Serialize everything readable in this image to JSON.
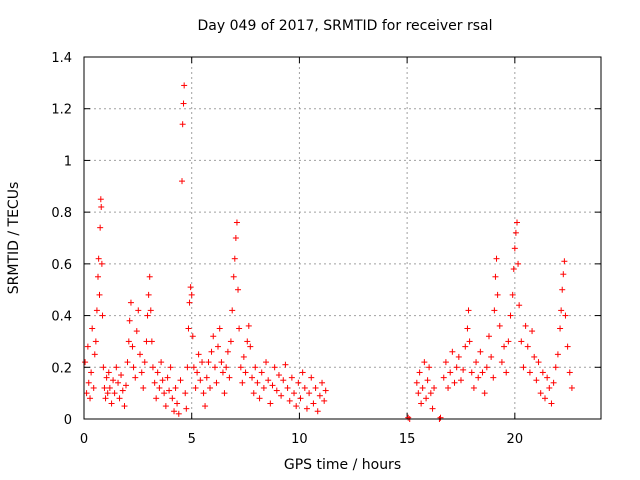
{
  "chart_data": {
    "type": "scatter",
    "title": "Day 049 of 2017, SRMTID for receiver rsal",
    "xlabel": "GPS time / hours",
    "ylabel": "SRMTID / TECUs",
    "xlim": [
      0,
      24
    ],
    "ylim": [
      0,
      1.4
    ],
    "x_ticks": [
      {
        "value": 0,
        "label": "0"
      },
      {
        "value": 5,
        "label": "5"
      },
      {
        "value": 10,
        "label": "10"
      },
      {
        "value": 15,
        "label": "15"
      },
      {
        "value": 20,
        "label": "20"
      }
    ],
    "y_ticks": [
      {
        "value": 0,
        "label": "0"
      },
      {
        "value": 0.2,
        "label": "0.2"
      },
      {
        "value": 0.4,
        "label": "0.4"
      },
      {
        "value": 0.6,
        "label": "0.6"
      },
      {
        "value": 0.8,
        "label": "0.8"
      },
      {
        "value": 1.0,
        "label": "1"
      },
      {
        "value": 1.2,
        "label": "1.2"
      },
      {
        "value": 1.4,
        "label": "1.4"
      }
    ],
    "grid": true,
    "marker": "+",
    "color": "#ff0000",
    "series": [
      {
        "name": "SRMTID",
        "points": [
          [
            0.05,
            0.22
          ],
          [
            0.12,
            0.1
          ],
          [
            0.18,
            0.28
          ],
          [
            0.22,
            0.14
          ],
          [
            0.28,
            0.08
          ],
          [
            0.33,
            0.18
          ],
          [
            0.38,
            0.35
          ],
          [
            0.45,
            0.12
          ],
          [
            0.5,
            0.25
          ],
          [
            0.55,
            0.3
          ],
          [
            0.6,
            0.42
          ],
          [
            0.65,
            0.55
          ],
          [
            0.68,
            0.62
          ],
          [
            0.72,
            0.48
          ],
          [
            0.75,
            0.74
          ],
          [
            0.78,
            0.85
          ],
          [
            0.8,
            0.82
          ],
          [
            0.83,
            0.6
          ],
          [
            0.86,
            0.4
          ],
          [
            0.9,
            0.2
          ],
          [
            0.95,
            0.12
          ],
          [
            1.0,
            0.08
          ],
          [
            1.05,
            0.16
          ],
          [
            1.1,
            0.1
          ],
          [
            1.15,
            0.18
          ],
          [
            1.2,
            0.12
          ],
          [
            1.28,
            0.06
          ],
          [
            1.35,
            0.15
          ],
          [
            1.42,
            0.1
          ],
          [
            1.5,
            0.2
          ],
          [
            1.58,
            0.14
          ],
          [
            1.65,
            0.08
          ],
          [
            1.72,
            0.17
          ],
          [
            1.8,
            0.11
          ],
          [
            1.88,
            0.05
          ],
          [
            1.95,
            0.13
          ],
          [
            2.02,
            0.22
          ],
          [
            2.08,
            0.3
          ],
          [
            2.12,
            0.38
          ],
          [
            2.18,
            0.45
          ],
          [
            2.25,
            0.28
          ],
          [
            2.3,
            0.2
          ],
          [
            2.38,
            0.16
          ],
          [
            2.45,
            0.34
          ],
          [
            2.52,
            0.42
          ],
          [
            2.6,
            0.25
          ],
          [
            2.68,
            0.18
          ],
          [
            2.75,
            0.12
          ],
          [
            2.82,
            0.22
          ],
          [
            2.9,
            0.3
          ],
          [
            2.95,
            0.4
          ],
          [
            3.0,
            0.48
          ],
          [
            3.05,
            0.55
          ],
          [
            3.1,
            0.42
          ],
          [
            3.15,
            0.3
          ],
          [
            3.2,
            0.2
          ],
          [
            3.28,
            0.14
          ],
          [
            3.35,
            0.08
          ],
          [
            3.42,
            0.18
          ],
          [
            3.5,
            0.12
          ],
          [
            3.58,
            0.22
          ],
          [
            3.65,
            0.15
          ],
          [
            3.72,
            0.1
          ],
          [
            3.8,
            0.05
          ],
          [
            3.88,
            0.16
          ],
          [
            3.95,
            0.11
          ],
          [
            4.02,
            0.2
          ],
          [
            4.1,
            0.08
          ],
          [
            4.18,
            0.03
          ],
          [
            4.25,
            0.12
          ],
          [
            4.32,
            0.06
          ],
          [
            4.4,
            0.02
          ],
          [
            4.48,
            0.15
          ],
          [
            4.55,
            0.92
          ],
          [
            4.58,
            1.14
          ],
          [
            4.62,
            1.22
          ],
          [
            4.65,
            1.29
          ],
          [
            4.7,
            0.1
          ],
          [
            4.75,
            0.04
          ],
          [
            4.8,
            0.2
          ],
          [
            4.85,
            0.35
          ],
          [
            4.9,
            0.45
          ],
          [
            4.95,
            0.51
          ],
          [
            5.0,
            0.48
          ],
          [
            5.05,
            0.32
          ],
          [
            5.1,
            0.2
          ],
          [
            5.18,
            0.12
          ],
          [
            5.25,
            0.18
          ],
          [
            5.32,
            0.25
          ],
          [
            5.4,
            0.15
          ],
          [
            5.48,
            0.22
          ],
          [
            5.55,
            0.1
          ],
          [
            5.62,
            0.05
          ],
          [
            5.7,
            0.16
          ],
          [
            5.78,
            0.22
          ],
          [
            5.85,
            0.12
          ],
          [
            5.92,
            0.26
          ],
          [
            6.0,
            0.32
          ],
          [
            6.08,
            0.2
          ],
          [
            6.15,
            0.14
          ],
          [
            6.22,
            0.28
          ],
          [
            6.3,
            0.35
          ],
          [
            6.38,
            0.22
          ],
          [
            6.45,
            0.18
          ],
          [
            6.52,
            0.1
          ],
          [
            6.6,
            0.2
          ],
          [
            6.68,
            0.26
          ],
          [
            6.75,
            0.16
          ],
          [
            6.82,
            0.3
          ],
          [
            6.88,
            0.42
          ],
          [
            6.95,
            0.55
          ],
          [
            7.0,
            0.62
          ],
          [
            7.05,
            0.7
          ],
          [
            7.1,
            0.76
          ],
          [
            7.15,
            0.5
          ],
          [
            7.2,
            0.35
          ],
          [
            7.28,
            0.2
          ],
          [
            7.35,
            0.14
          ],
          [
            7.42,
            0.24
          ],
          [
            7.5,
            0.18
          ],
          [
            7.58,
            0.3
          ],
          [
            7.65,
            0.36
          ],
          [
            7.72,
            0.28
          ],
          [
            7.8,
            0.16
          ],
          [
            7.88,
            0.1
          ],
          [
            7.95,
            0.2
          ],
          [
            8.05,
            0.14
          ],
          [
            8.15,
            0.08
          ],
          [
            8.25,
            0.18
          ],
          [
            8.35,
            0.12
          ],
          [
            8.45,
            0.22
          ],
          [
            8.55,
            0.15
          ],
          [
            8.65,
            0.06
          ],
          [
            8.75,
            0.13
          ],
          [
            8.85,
            0.2
          ],
          [
            8.95,
            0.11
          ],
          [
            9.05,
            0.17
          ],
          [
            9.15,
            0.09
          ],
          [
            9.25,
            0.15
          ],
          [
            9.35,
            0.21
          ],
          [
            9.45,
            0.12
          ],
          [
            9.55,
            0.07
          ],
          [
            9.65,
            0.16
          ],
          [
            9.75,
            0.1
          ],
          [
            9.85,
            0.05
          ],
          [
            9.95,
            0.14
          ],
          [
            10.05,
            0.08
          ],
          [
            10.15,
            0.18
          ],
          [
            10.25,
            0.12
          ],
          [
            10.35,
            0.04
          ],
          [
            10.45,
            0.1
          ],
          [
            10.55,
            0.16
          ],
          [
            10.65,
            0.06
          ],
          [
            10.75,
            0.12
          ],
          [
            10.85,
            0.03
          ],
          [
            10.95,
            0.09
          ],
          [
            11.05,
            0.14
          ],
          [
            11.15,
            0.07
          ],
          [
            11.22,
            0.11
          ],
          [
            15.05,
            0.005
          ],
          [
            15.12,
            0.0
          ],
          [
            15.45,
            0.14
          ],
          [
            15.52,
            0.1
          ],
          [
            15.58,
            0.18
          ],
          [
            15.65,
            0.06
          ],
          [
            15.72,
            0.12
          ],
          [
            15.8,
            0.22
          ],
          [
            15.88,
            0.08
          ],
          [
            15.95,
            0.15
          ],
          [
            16.02,
            0.2
          ],
          [
            16.1,
            0.1
          ],
          [
            16.18,
            0.04
          ],
          [
            16.25,
            0.12
          ],
          [
            16.5,
            0.0
          ],
          [
            16.55,
            0.005
          ],
          [
            16.7,
            0.16
          ],
          [
            16.8,
            0.22
          ],
          [
            16.9,
            0.12
          ],
          [
            17.0,
            0.18
          ],
          [
            17.1,
            0.26
          ],
          [
            17.2,
            0.14
          ],
          [
            17.3,
            0.2
          ],
          [
            17.4,
            0.24
          ],
          [
            17.5,
            0.15
          ],
          [
            17.6,
            0.19
          ],
          [
            17.7,
            0.28
          ],
          [
            17.8,
            0.35
          ],
          [
            17.85,
            0.42
          ],
          [
            17.9,
            0.3
          ],
          [
            18.0,
            0.18
          ],
          [
            18.1,
            0.12
          ],
          [
            18.2,
            0.22
          ],
          [
            18.3,
            0.16
          ],
          [
            18.4,
            0.26
          ],
          [
            18.5,
            0.18
          ],
          [
            18.6,
            0.1
          ],
          [
            18.7,
            0.2
          ],
          [
            18.8,
            0.32
          ],
          [
            18.9,
            0.24
          ],
          [
            19.0,
            0.16
          ],
          [
            19.05,
            0.42
          ],
          [
            19.1,
            0.55
          ],
          [
            19.15,
            0.62
          ],
          [
            19.2,
            0.48
          ],
          [
            19.3,
            0.36
          ],
          [
            19.4,
            0.22
          ],
          [
            19.5,
            0.28
          ],
          [
            19.6,
            0.18
          ],
          [
            19.7,
            0.3
          ],
          [
            19.8,
            0.4
          ],
          [
            19.9,
            0.48
          ],
          [
            19.95,
            0.58
          ],
          [
            20.0,
            0.66
          ],
          [
            20.05,
            0.72
          ],
          [
            20.1,
            0.76
          ],
          [
            20.15,
            0.6
          ],
          [
            20.2,
            0.44
          ],
          [
            20.3,
            0.3
          ],
          [
            20.4,
            0.2
          ],
          [
            20.5,
            0.36
          ],
          [
            20.6,
            0.28
          ],
          [
            20.7,
            0.18
          ],
          [
            20.8,
            0.34
          ],
          [
            20.9,
            0.24
          ],
          [
            21.0,
            0.15
          ],
          [
            21.1,
            0.22
          ],
          [
            21.2,
            0.1
          ],
          [
            21.3,
            0.18
          ],
          [
            21.4,
            0.08
          ],
          [
            21.5,
            0.16
          ],
          [
            21.6,
            0.12
          ],
          [
            21.7,
            0.06
          ],
          [
            21.8,
            0.14
          ],
          [
            21.9,
            0.2
          ],
          [
            22.0,
            0.25
          ],
          [
            22.1,
            0.35
          ],
          [
            22.15,
            0.42
          ],
          [
            22.2,
            0.5
          ],
          [
            22.25,
            0.56
          ],
          [
            22.3,
            0.61
          ],
          [
            22.35,
            0.4
          ],
          [
            22.45,
            0.28
          ],
          [
            22.55,
            0.18
          ],
          [
            22.65,
            0.12
          ]
        ]
      }
    ]
  }
}
